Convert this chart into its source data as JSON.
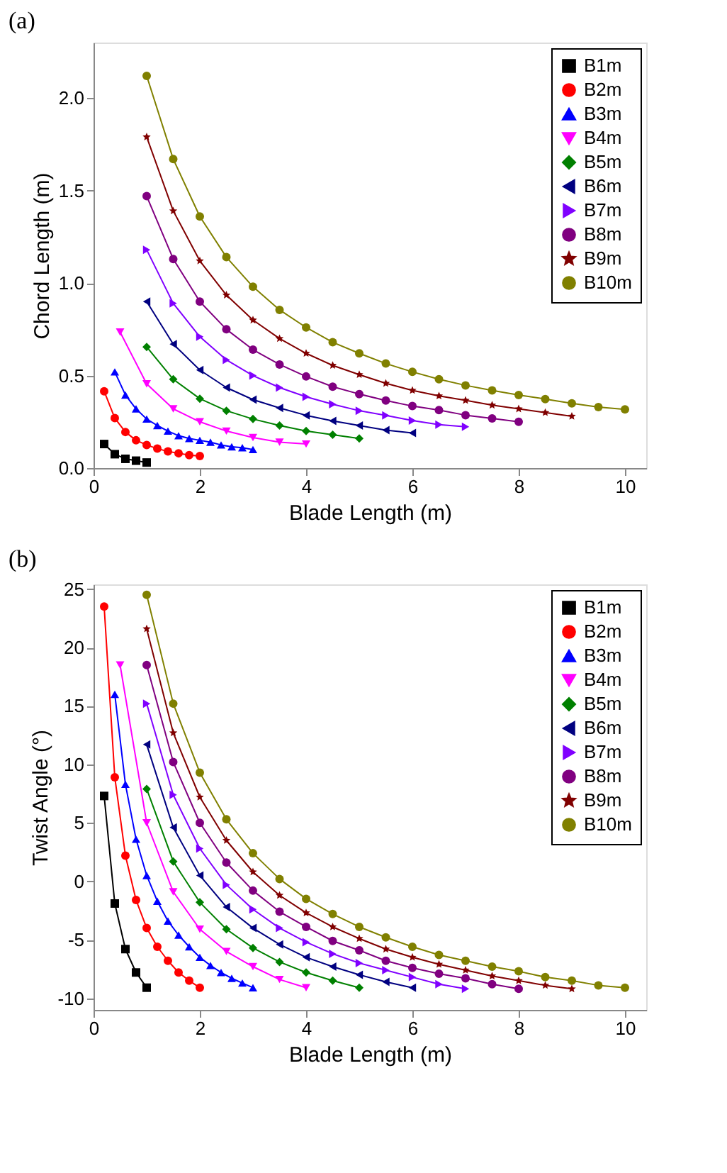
{
  "chart_data": [
    {
      "type": "line",
      "title": "(a)",
      "xlabel": "Blade Length (m)",
      "ylabel": "Chord Length (m)",
      "xlim": [
        0,
        10.4
      ],
      "xticks": [
        0,
        2,
        4,
        6,
        8,
        10
      ],
      "ylim": [
        0,
        2.3
      ],
      "yticks": [
        {
          "value": 0,
          "label": "0.0"
        },
        {
          "value": 0.5,
          "label": "0.5"
        },
        {
          "value": 1,
          "label": "1.0"
        },
        {
          "value": 1.5,
          "label": "1.5"
        },
        {
          "value": 2,
          "label": "2.0"
        }
      ],
      "grid": false,
      "legend": "top right",
      "line_style": "solid",
      "series": [
        {
          "name": "B1m",
          "color": "#000000",
          "marker": "square",
          "x": [
            0.2,
            0.4,
            0.6,
            0.8,
            1.0
          ],
          "values": [
            0.13,
            0.075,
            0.05,
            0.04,
            0.03
          ]
        },
        {
          "name": "B2m",
          "color": "#ff0000",
          "marker": "circle",
          "x": [
            0.2,
            0.4,
            0.6,
            0.8,
            1.0,
            1.2,
            1.4,
            1.6,
            1.8,
            2.0
          ],
          "values": [
            0.415,
            0.27,
            0.195,
            0.15,
            0.125,
            0.105,
            0.09,
            0.08,
            0.07,
            0.065
          ]
        },
        {
          "name": "B3m",
          "color": "#0000ff",
          "marker": "triangle-up",
          "x": [
            0.4,
            0.6,
            0.8,
            1.0,
            1.2,
            1.4,
            1.6,
            1.8,
            2.0,
            2.2,
            2.4,
            2.6,
            2.8,
            3.0
          ],
          "values": [
            0.52,
            0.395,
            0.32,
            0.265,
            0.23,
            0.2,
            0.175,
            0.16,
            0.15,
            0.14,
            0.125,
            0.115,
            0.11,
            0.1
          ]
        },
        {
          "name": "B4m",
          "color": "#ff00ff",
          "marker": "triangle-down",
          "x": [
            0.5,
            1.0,
            1.5,
            2.0,
            2.5,
            3.0,
            3.5,
            4.0
          ],
          "values": [
            0.735,
            0.455,
            0.32,
            0.25,
            0.2,
            0.165,
            0.14,
            0.13
          ]
        },
        {
          "name": "B5m",
          "color": "#008000",
          "marker": "diamond",
          "x": [
            1.0,
            1.5,
            2.0,
            2.5,
            3.0,
            3.5,
            4.0,
            4.5,
            5.0
          ],
          "values": [
            0.655,
            0.48,
            0.375,
            0.31,
            0.265,
            0.23,
            0.2,
            0.18,
            0.16
          ]
        },
        {
          "name": "B6m",
          "color": "#000080",
          "marker": "triangle-left",
          "x": [
            1.0,
            1.5,
            2.0,
            2.5,
            3.0,
            3.5,
            4.0,
            4.5,
            5.0,
            5.5,
            6.0
          ],
          "values": [
            0.9,
            0.67,
            0.53,
            0.435,
            0.37,
            0.325,
            0.285,
            0.255,
            0.23,
            0.205,
            0.19
          ]
        },
        {
          "name": "B7m",
          "color": "#8000ff",
          "marker": "triangle-right",
          "x": [
            1.0,
            1.5,
            2.0,
            2.5,
            3.0,
            3.5,
            4.0,
            4.5,
            5.0,
            5.5,
            6.0,
            6.5,
            7.0
          ],
          "values": [
            1.18,
            0.89,
            0.71,
            0.585,
            0.5,
            0.435,
            0.385,
            0.345,
            0.31,
            0.285,
            0.257,
            0.235,
            0.223
          ]
        },
        {
          "name": "B8m",
          "color": "#800080",
          "marker": "circle",
          "x": [
            1.0,
            1.5,
            2.0,
            2.5,
            3.0,
            3.5,
            4.0,
            4.5,
            5.0,
            5.5,
            6.0,
            6.5,
            7.0,
            7.5,
            8.0
          ],
          "values": [
            1.47,
            1.13,
            0.9,
            0.75,
            0.64,
            0.56,
            0.495,
            0.44,
            0.4,
            0.365,
            0.335,
            0.313,
            0.286,
            0.268,
            0.25
          ]
        },
        {
          "name": "B9m",
          "color": "#800000",
          "marker": "star",
          "x": [
            1.0,
            1.5,
            2.0,
            2.5,
            3.0,
            3.5,
            4.0,
            4.5,
            5.0,
            5.5,
            6.0,
            6.5,
            7.0,
            7.5,
            8.0,
            8.5,
            9.0
          ],
          "values": [
            1.79,
            1.39,
            1.12,
            0.935,
            0.8,
            0.7,
            0.62,
            0.555,
            0.505,
            0.458,
            0.42,
            0.39,
            0.366,
            0.34,
            0.32,
            0.3,
            0.28
          ]
        },
        {
          "name": "B10m",
          "color": "#808000",
          "marker": "circle",
          "x": [
            1.0,
            1.5,
            2.0,
            2.5,
            3.0,
            3.5,
            4.0,
            4.5,
            5.0,
            5.5,
            6.0,
            6.5,
            7.0,
            7.5,
            8.0,
            8.5,
            9.0,
            9.5,
            10.0
          ],
          "values": [
            2.12,
            1.67,
            1.36,
            1.14,
            0.98,
            0.855,
            0.76,
            0.68,
            0.62,
            0.565,
            0.52,
            0.48,
            0.447,
            0.42,
            0.395,
            0.373,
            0.35,
            0.33,
            0.317
          ]
        }
      ]
    },
    {
      "type": "line",
      "title": "(b)",
      "xlabel": "Blade Length (m)",
      "ylabel": "Twist Angle (°)",
      "xlim": [
        0,
        10.4
      ],
      "xticks": [
        0,
        2,
        4,
        6,
        8,
        10
      ],
      "ylim": [
        -11,
        25.4
      ],
      "yticks": [
        -10,
        -5,
        0,
        5,
        10,
        15,
        20,
        25
      ],
      "grid": false,
      "legend": "top right",
      "line_style": "solid",
      "series": [
        {
          "name": "B1m",
          "color": "#000000",
          "marker": "square",
          "x": [
            0.2,
            0.4,
            0.6,
            0.8,
            1.0
          ],
          "values": [
            7.3,
            -1.9,
            -5.8,
            -7.8,
            -9.1
          ]
        },
        {
          "name": "B2m",
          "color": "#ff0000",
          "marker": "circle",
          "x": [
            0.2,
            0.4,
            0.6,
            0.8,
            1.0,
            1.2,
            1.4,
            1.6,
            1.8,
            2.0
          ],
          "values": [
            23.5,
            8.9,
            2.2,
            -1.6,
            -4.0,
            -5.6,
            -6.8,
            -7.8,
            -8.5,
            -9.1
          ]
        },
        {
          "name": "B3m",
          "color": "#0000ff",
          "marker": "triangle-up",
          "x": [
            0.4,
            0.6,
            0.8,
            1.0,
            1.2,
            1.4,
            1.6,
            1.8,
            2.0,
            2.2,
            2.4,
            2.6,
            2.8,
            3.0
          ],
          "values": [
            16.0,
            8.3,
            3.6,
            0.5,
            -1.7,
            -3.4,
            -4.6,
            -5.6,
            -6.5,
            -7.2,
            -7.8,
            -8.3,
            -8.7,
            -9.1
          ]
        },
        {
          "name": "B4m",
          "color": "#ff00ff",
          "marker": "triangle-down",
          "x": [
            0.5,
            1.0,
            1.5,
            2.0,
            2.5,
            3.0,
            3.5,
            4.0
          ],
          "values": [
            18.5,
            5.0,
            -0.9,
            -4.1,
            -6.0,
            -7.3,
            -8.4,
            -9.1
          ]
        },
        {
          "name": "B5m",
          "color": "#008000",
          "marker": "diamond",
          "x": [
            1.0,
            1.5,
            2.0,
            2.5,
            3.0,
            3.5,
            4.0,
            4.5,
            5.0
          ],
          "values": [
            7.9,
            1.7,
            -1.8,
            -4.1,
            -5.7,
            -6.9,
            -7.8,
            -8.5,
            -9.1
          ]
        },
        {
          "name": "B6m",
          "color": "#000080",
          "marker": "triangle-left",
          "x": [
            1.0,
            1.5,
            2.0,
            2.5,
            3.0,
            3.5,
            4.0,
            4.5,
            5.0,
            5.5,
            6.0
          ],
          "values": [
            11.7,
            4.6,
            0.5,
            -2.2,
            -4.0,
            -5.4,
            -6.5,
            -7.3,
            -8.0,
            -8.6,
            -9.1
          ]
        },
        {
          "name": "B7m",
          "color": "#8000ff",
          "marker": "triangle-right",
          "x": [
            1.0,
            1.5,
            2.0,
            2.5,
            3.0,
            3.5,
            4.0,
            4.5,
            5.0,
            5.5,
            6.0,
            6.5,
            7.0
          ],
          "values": [
            15.2,
            7.4,
            2.8,
            -0.3,
            -2.4,
            -4.0,
            -5.2,
            -6.2,
            -7.0,
            -7.6,
            -8.2,
            -8.8,
            -9.2
          ]
        },
        {
          "name": "B8m",
          "color": "#800080",
          "marker": "circle",
          "x": [
            1.0,
            1.5,
            2.0,
            2.5,
            3.0,
            3.5,
            4.0,
            4.5,
            5.0,
            5.5,
            6.0,
            6.5,
            7.0,
            7.5,
            8.0
          ],
          "values": [
            18.5,
            10.2,
            5.0,
            1.6,
            -0.8,
            -2.6,
            -3.9,
            -5.1,
            -5.9,
            -6.8,
            -7.4,
            -7.9,
            -8.3,
            -8.8,
            -9.2
          ]
        },
        {
          "name": "B9m",
          "color": "#800000",
          "marker": "star",
          "x": [
            1.0,
            1.5,
            2.0,
            2.5,
            3.0,
            3.5,
            4.0,
            4.5,
            5.0,
            5.5,
            6.0,
            6.5,
            7.0,
            7.5,
            8.0,
            8.5,
            9.0
          ],
          "values": [
            21.6,
            12.7,
            7.2,
            3.5,
            0.8,
            -1.2,
            -2.7,
            -3.9,
            -4.9,
            -5.8,
            -6.5,
            -7.1,
            -7.6,
            -8.1,
            -8.5,
            -8.9,
            -9.2
          ]
        },
        {
          "name": "B10m",
          "color": "#808000",
          "marker": "circle",
          "x": [
            1.0,
            1.5,
            2.0,
            2.5,
            3.0,
            3.5,
            4.0,
            4.5,
            5.0,
            5.5,
            6.0,
            6.5,
            7.0,
            7.5,
            8.0,
            8.5,
            9.0,
            9.5,
            10.0
          ],
          "values": [
            24.5,
            15.2,
            9.3,
            5.3,
            2.4,
            0.2,
            -1.5,
            -2.8,
            -3.9,
            -4.8,
            -5.6,
            -6.3,
            -6.8,
            -7.3,
            -7.7,
            -8.2,
            -8.5,
            -8.9,
            -9.1
          ]
        }
      ]
    }
  ]
}
